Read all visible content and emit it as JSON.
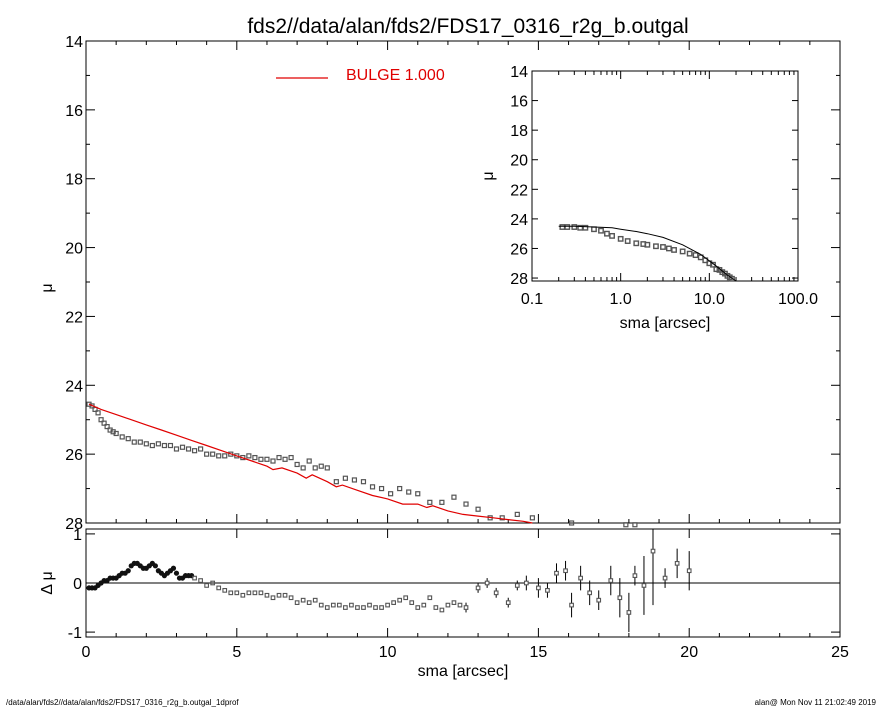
{
  "title": "fds2//data/alan/fds2/FDS17_0316_r2g_b.outgal",
  "footer_left": "/data/alan/fds2//data/alan/fds2/FDS17_0316_r2g_b.outgal_1dprof",
  "footer_right": "alan@  Mon Nov 11 21:02:49 2019",
  "colors": {
    "model": "#e00000",
    "data_marker": "#555555",
    "axis": "#000000"
  },
  "chart_data": [
    {
      "id": "main-profile",
      "type": "scatter",
      "title": "",
      "xlabel": "",
      "ylabel": "μ",
      "xlim": [
        0,
        25
      ],
      "ylim": [
        28,
        14
      ],
      "y_inverted": true,
      "yticks": [
        14,
        16,
        18,
        20,
        22,
        24,
        26,
        28
      ],
      "legend": {
        "label": "BULGE  1.000",
        "color": "#e00000",
        "placement": "top-center"
      },
      "series": [
        {
          "name": "BULGE  1.000",
          "kind": "line",
          "color": "#e00000",
          "x": [
            0.1,
            0.5,
            1.0,
            1.5,
            2.0,
            2.5,
            3.0,
            3.5,
            4.0,
            4.5,
            5.0,
            5.5,
            6.0,
            6.2,
            6.5,
            7.0,
            7.3,
            7.5,
            8.0,
            8.3,
            8.5,
            9.0,
            9.5,
            10.0,
            10.5,
            11.0,
            11.3,
            11.5,
            12.0,
            12.5,
            13.0,
            13.5,
            14.0,
            14.5,
            14.8
          ],
          "y": [
            24.55,
            24.7,
            24.85,
            25.0,
            25.15,
            25.3,
            25.45,
            25.6,
            25.75,
            25.9,
            26.05,
            26.2,
            26.35,
            26.45,
            26.4,
            26.55,
            26.7,
            26.6,
            26.8,
            26.95,
            26.9,
            27.05,
            27.2,
            27.3,
            27.45,
            27.45,
            27.55,
            27.5,
            27.65,
            27.75,
            27.8,
            27.85,
            27.9,
            27.95,
            28.0
          ]
        }
      ],
      "data_points": {
        "kind": "markers",
        "x": [
          0.1,
          0.2,
          0.3,
          0.4,
          0.5,
          0.6,
          0.7,
          0.8,
          0.9,
          1.0,
          1.2,
          1.4,
          1.6,
          1.8,
          2.0,
          2.2,
          2.4,
          2.6,
          2.8,
          3.0,
          3.2,
          3.4,
          3.6,
          3.8,
          4.0,
          4.2,
          4.4,
          4.6,
          4.8,
          5.0,
          5.2,
          5.4,
          5.6,
          5.8,
          6.0,
          6.2,
          6.4,
          6.6,
          6.8,
          7.0,
          7.2,
          7.4,
          7.6,
          7.8,
          8.0,
          8.3,
          8.6,
          8.9,
          9.2,
          9.5,
          9.8,
          10.1,
          10.4,
          10.7,
          11.0,
          11.4,
          11.8,
          12.2,
          12.6,
          13.0,
          13.4,
          13.8,
          14.3,
          14.8,
          16.1,
          17.9,
          18.2
        ],
        "y": [
          24.55,
          24.6,
          24.7,
          24.8,
          25.0,
          25.1,
          25.2,
          25.3,
          25.35,
          25.4,
          25.5,
          25.55,
          25.65,
          25.65,
          25.7,
          25.75,
          25.7,
          25.75,
          25.75,
          25.85,
          25.8,
          25.85,
          25.9,
          25.85,
          26.0,
          26.0,
          26.05,
          26.05,
          26.0,
          26.05,
          26.1,
          26.05,
          26.1,
          26.15,
          26.15,
          26.2,
          26.1,
          26.15,
          26.1,
          26.3,
          26.4,
          26.2,
          26.4,
          26.35,
          26.4,
          26.8,
          26.7,
          26.75,
          26.8,
          26.95,
          27.0,
          27.15,
          27.0,
          27.1,
          27.15,
          27.4,
          27.4,
          27.25,
          27.45,
          27.6,
          27.85,
          27.85,
          27.75,
          27.85,
          28.0,
          28.05,
          28.05
        ]
      }
    },
    {
      "id": "residuals",
      "type": "scatter",
      "xlabel": "sma [arcsec]",
      "ylabel": "Δ μ",
      "xlim": [
        0,
        25
      ],
      "ylim": [
        -1.1,
        1.1
      ],
      "xticks": [
        0,
        5,
        10,
        15,
        20,
        25
      ],
      "yticks": [
        -1,
        0,
        1
      ],
      "zero_line": true,
      "dense": {
        "x": [
          0.1,
          0.2,
          0.3,
          0.4,
          0.5,
          0.6,
          0.7,
          0.8,
          0.9,
          1.0,
          1.1,
          1.2,
          1.3,
          1.4,
          1.5,
          1.6,
          1.7,
          1.8,
          1.9,
          2.0,
          2.1,
          2.2,
          2.3,
          2.4,
          2.5,
          2.6,
          2.7,
          2.8,
          2.9,
          3.0,
          3.1,
          3.2,
          3.3,
          3.4,
          3.5,
          3.6,
          3.8,
          4.0,
          4.2,
          4.4,
          4.6,
          4.8,
          5.0,
          5.2,
          5.4,
          5.6,
          5.8,
          6.0,
          6.2,
          6.4,
          6.6,
          6.8,
          7.0,
          7.2,
          7.4,
          7.6,
          7.8,
          8.0,
          8.2,
          8.4,
          8.6,
          8.8,
          9.0,
          9.2,
          9.4,
          9.6,
          9.8,
          10.0,
          10.2,
          10.4,
          10.6,
          10.8,
          11.0,
          11.2,
          11.4,
          11.6,
          11.8,
          12.0,
          12.2,
          12.4
        ],
        "y": [
          -0.1,
          -0.1,
          -0.1,
          -0.05,
          0.0,
          0.05,
          0.05,
          0.1,
          0.1,
          0.1,
          0.15,
          0.2,
          0.2,
          0.25,
          0.35,
          0.4,
          0.4,
          0.35,
          0.3,
          0.3,
          0.35,
          0.4,
          0.35,
          0.25,
          0.2,
          0.15,
          0.2,
          0.25,
          0.3,
          0.2,
          0.1,
          0.1,
          0.15,
          0.15,
          0.15,
          0.1,
          0.05,
          -0.05,
          0.0,
          -0.1,
          -0.15,
          -0.2,
          -0.2,
          -0.25,
          -0.2,
          -0.2,
          -0.2,
          -0.25,
          -0.3,
          -0.25,
          -0.25,
          -0.3,
          -0.4,
          -0.35,
          -0.4,
          -0.35,
          -0.45,
          -0.5,
          -0.45,
          -0.45,
          -0.5,
          -0.45,
          -0.5,
          -0.5,
          -0.45,
          -0.5,
          -0.5,
          -0.45,
          -0.4,
          -0.35,
          -0.3,
          -0.4,
          -0.5,
          -0.45,
          -0.3,
          -0.5,
          -0.55,
          -0.45,
          -0.4,
          -0.45
        ]
      },
      "errorbars": {
        "x": [
          12.6,
          13.0,
          13.3,
          13.6,
          14.0,
          14.3,
          14.6,
          15.0,
          15.3,
          15.6,
          15.9,
          16.1,
          16.4,
          16.7,
          17.0,
          17.4,
          17.7,
          18.0,
          18.2,
          18.5,
          18.8,
          19.2,
          19.6,
          20.0
        ],
        "y": [
          -0.5,
          -0.1,
          0.0,
          -0.2,
          -0.4,
          -0.05,
          0.0,
          -0.1,
          -0.15,
          0.2,
          0.25,
          -0.45,
          0.1,
          -0.2,
          -0.35,
          0.05,
          -0.3,
          -0.6,
          0.15,
          -0.05,
          0.65,
          0.1,
          0.4,
          0.25
        ],
        "err": [
          0.1,
          0.1,
          0.1,
          0.1,
          0.1,
          0.1,
          0.15,
          0.2,
          0.15,
          0.2,
          0.2,
          0.25,
          0.25,
          0.25,
          0.2,
          0.3,
          0.4,
          0.4,
          0.2,
          0.6,
          1.1,
          0.2,
          0.3,
          0.4
        ]
      }
    },
    {
      "id": "inset-loglog",
      "type": "scatter",
      "xlabel": "sma [arcsec]",
      "ylabel": "μ",
      "xscale": "log",
      "xlim": [
        0.1,
        100.0
      ],
      "ylim": [
        28.2,
        14
      ],
      "y_inverted": true,
      "xticks": [
        "0.1",
        "1.0",
        "10.0",
        "100.0"
      ],
      "yticks": [
        14,
        16,
        18,
        20,
        22,
        24,
        26,
        28
      ],
      "model_x": [
        0.2,
        0.3,
        0.5,
        0.8,
        1.0,
        1.5,
        2.0,
        3.0,
        5.0,
        8.0,
        12.0,
        16.0,
        20.0
      ],
      "model_y": [
        24.5,
        24.5,
        24.55,
        24.6,
        24.7,
        24.85,
        25.0,
        25.25,
        25.75,
        26.4,
        27.2,
        27.8,
        28.2
      ],
      "data_x": [
        0.22,
        0.25,
        0.3,
        0.35,
        0.4,
        0.5,
        0.6,
        0.7,
        0.8,
        1.0,
        1.2,
        1.5,
        1.8,
        2.0,
        2.5,
        3.0,
        3.5,
        4.0,
        5.0,
        6.0,
        7.0,
        8.0,
        9.0,
        10.0,
        11.0,
        12.0,
        13.0,
        14.0,
        15.0,
        16.0,
        17.0,
        18.0
      ],
      "data_y": [
        24.55,
        24.55,
        24.55,
        24.6,
        24.6,
        24.7,
        24.8,
        25.0,
        25.15,
        25.35,
        25.5,
        25.65,
        25.7,
        25.75,
        25.85,
        25.9,
        26.0,
        26.1,
        26.2,
        26.35,
        26.45,
        26.6,
        26.8,
        27.0,
        27.1,
        27.4,
        27.45,
        27.6,
        27.7,
        27.85,
        27.95,
        28.05
      ]
    }
  ]
}
